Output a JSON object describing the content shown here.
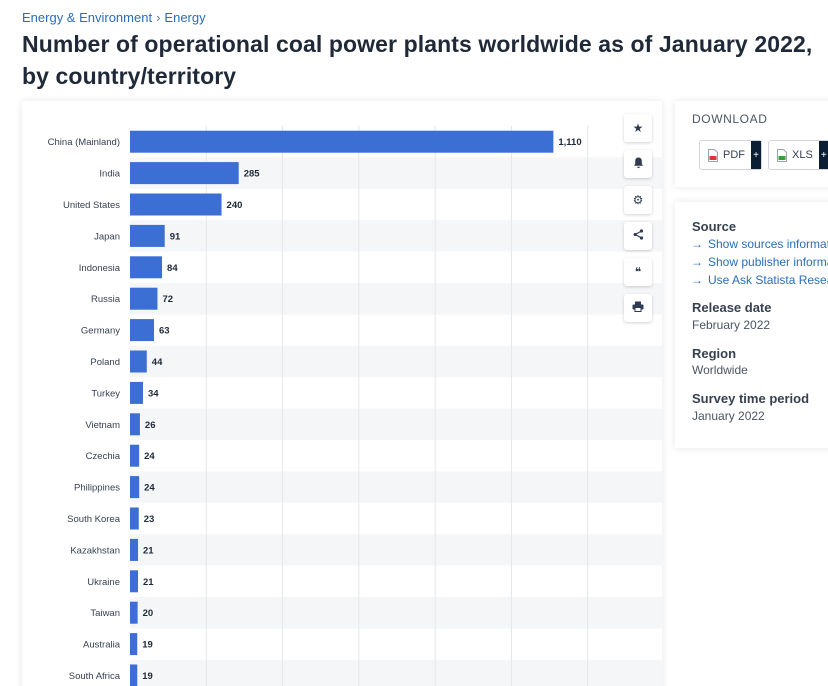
{
  "breadcrumb": {
    "category": "Energy & Environment",
    "separator": "›",
    "subcategory": "Energy"
  },
  "page_title": "Number of operational coal power plants worldwide as of January 2022, by country/territory",
  "toolbar": {
    "icons": [
      "star-icon",
      "bell-icon",
      "gear-icon",
      "share-icon",
      "quote-icon",
      "print-icon"
    ],
    "glyphs": [
      "★",
      "🔔",
      "⚙",
      "⋖",
      "❝",
      "⎙"
    ]
  },
  "download": {
    "title": "DOWNLOAD",
    "pdf_label": "PDF",
    "xls_label": "XLS",
    "plus_label": "+",
    "pdf_color": "#d9363e",
    "xls_color": "#3a9d3a"
  },
  "info": {
    "source_heading": "Source",
    "link_arrow": "→",
    "links": [
      "Show sources information",
      "Show publisher information",
      "Use Ask Statista Research Service"
    ],
    "release_heading": "Release date",
    "release_value": "February 2022",
    "region_heading": "Region",
    "region_value": "Worldwide",
    "survey_heading": "Survey time period",
    "survey_value": "January 2022"
  },
  "chart_data": {
    "type": "bar",
    "orientation": "horizontal",
    "categories": [
      "China (Mainland)",
      "India",
      "United States",
      "Japan",
      "Indonesia",
      "Russia",
      "Germany",
      "Poland",
      "Turkey",
      "Vietnam",
      "Czechia",
      "Philippines",
      "South Korea",
      "Kazakhstan",
      "Ukraine",
      "Taiwan",
      "Australia",
      "South Africa"
    ],
    "values": [
      1110,
      285,
      240,
      91,
      84,
      72,
      63,
      44,
      34,
      26,
      24,
      24,
      23,
      21,
      21,
      20,
      19,
      19
    ],
    "value_labels": [
      "1,110",
      "285",
      "240",
      "91",
      "84",
      "72",
      "63",
      "44",
      "34",
      "26",
      "24",
      "24",
      "23",
      "21",
      "21",
      "20",
      "19",
      "19"
    ],
    "xlim": [
      0,
      1400
    ],
    "grid": true,
    "bar_color": "#3b6fd4",
    "band_color": "#f5f6f8"
  }
}
